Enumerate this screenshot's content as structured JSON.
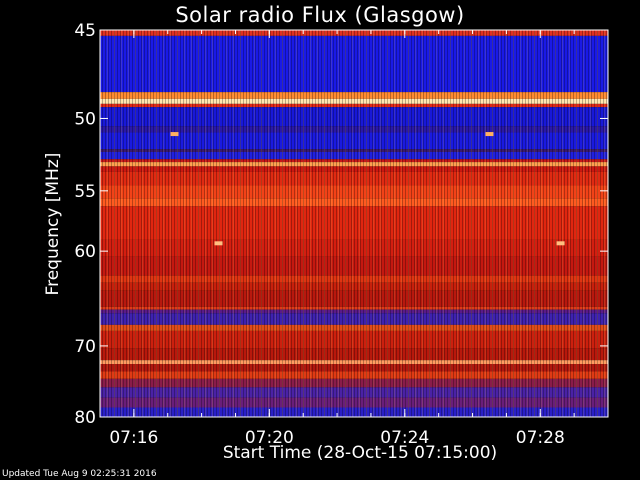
{
  "footer": {
    "updated": "Updated Tue Aug  9 02:25:31 2016"
  },
  "chart_data": {
    "type": "heatmap",
    "title": "Solar radio Flux (Glasgow)",
    "xlabel": "Start Time (28-Oct-15 07:15:00)",
    "ylabel": "Frequency [MHz]",
    "x_range_minutes": [
      0,
      15
    ],
    "x_ticks": [
      {
        "label": "07:16",
        "minutes": 1
      },
      {
        "label": "07:20",
        "minutes": 5
      },
      {
        "label": "07:24",
        "minutes": 9
      },
      {
        "label": "07:28",
        "minutes": 13
      }
    ],
    "ylim": [
      45,
      80
    ],
    "y_scale": "reciprocal",
    "y_ticks": [
      {
        "label": "45",
        "value": 45
      },
      {
        "label": "50",
        "value": 50
      },
      {
        "label": "55",
        "value": 55
      },
      {
        "label": "60",
        "value": 60
      },
      {
        "label": "70",
        "value": 70
      },
      {
        "label": "80",
        "value": 80
      }
    ],
    "background_color": "#000000",
    "bands": [
      {
        "from": 45.0,
        "to": 45.3,
        "color": "#e03020"
      },
      {
        "from": 45.3,
        "to": 48.4,
        "color": "#1a1ae6"
      },
      {
        "from": 48.4,
        "to": 48.8,
        "color": "#ff8a30"
      },
      {
        "from": 48.8,
        "to": 49.1,
        "color": "#ffe6b0"
      },
      {
        "from": 49.1,
        "to": 49.3,
        "color": "#e02818"
      },
      {
        "from": 49.3,
        "to": 50.5,
        "color": "#1818d8"
      },
      {
        "from": 50.5,
        "to": 50.9,
        "color": "#2a18a8"
      },
      {
        "from": 50.9,
        "to": 52.0,
        "color": "#1a1ae0"
      },
      {
        "from": 52.0,
        "to": 52.2,
        "color": "#3a1a70"
      },
      {
        "from": 52.2,
        "to": 52.7,
        "color": "#2020e0"
      },
      {
        "from": 52.7,
        "to": 52.9,
        "color": "#c81818"
      },
      {
        "from": 52.9,
        "to": 53.2,
        "color": "#ffa050"
      },
      {
        "from": 53.2,
        "to": 53.6,
        "color": "#cc1810"
      },
      {
        "from": 53.6,
        "to": 54.6,
        "color": "#e02a12"
      },
      {
        "from": 54.6,
        "to": 55.6,
        "color": "#f24218"
      },
      {
        "from": 55.6,
        "to": 56.2,
        "color": "#ff5a20"
      },
      {
        "from": 56.2,
        "to": 59.0,
        "color": "#e02610"
      },
      {
        "from": 59.0,
        "to": 60.5,
        "color": "#d41e10"
      },
      {
        "from": 60.5,
        "to": 62.3,
        "color": "#c41810"
      },
      {
        "from": 62.3,
        "to": 63.0,
        "color": "#e03412"
      },
      {
        "from": 63.0,
        "to": 63.8,
        "color": "#c8200c"
      },
      {
        "from": 63.8,
        "to": 65.5,
        "color": "#b8180e"
      },
      {
        "from": 65.5,
        "to": 65.8,
        "color": "#e03a18"
      },
      {
        "from": 65.8,
        "to": 66.2,
        "color": "#5a1a8a"
      },
      {
        "from": 66.2,
        "to": 67.5,
        "color": "#3e22b0"
      },
      {
        "from": 67.5,
        "to": 68.2,
        "color": "#e04a18"
      },
      {
        "from": 68.2,
        "to": 70.3,
        "color": "#cc200e"
      },
      {
        "from": 70.3,
        "to": 71.8,
        "color": "#b8180c"
      },
      {
        "from": 71.8,
        "to": 72.3,
        "color": "#ff9a60"
      },
      {
        "from": 72.3,
        "to": 73.3,
        "color": "#b0180e"
      },
      {
        "from": 73.3,
        "to": 74.3,
        "color": "#e03a14"
      },
      {
        "from": 74.3,
        "to": 75.5,
        "color": "#8a1c4a"
      },
      {
        "from": 75.5,
        "to": 77.0,
        "color": "#4a22a6"
      },
      {
        "from": 77.0,
        "to": 78.5,
        "color": "#6a1e7a"
      },
      {
        "from": 78.5,
        "to": 80.0,
        "color": "#2a20c8"
      }
    ],
    "spots": [
      {
        "minutes": 2.2,
        "mhz": 51.0,
        "color": "#ffb060"
      },
      {
        "minutes": 11.5,
        "mhz": 51.0,
        "color": "#ffb060"
      },
      {
        "minutes": 3.5,
        "mhz": 59.3,
        "color": "#ffc080"
      },
      {
        "minutes": 13.6,
        "mhz": 59.3,
        "color": "#ffc080"
      }
    ]
  }
}
